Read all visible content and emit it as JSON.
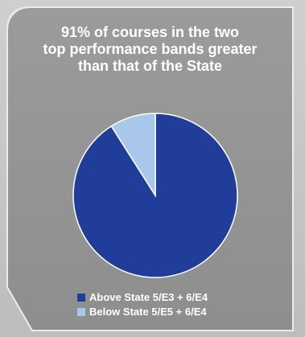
{
  "chart_data": {
    "type": "pie",
    "title_lines": [
      "91% of courses in the two",
      "top performance bands greater",
      "than that of the State"
    ],
    "slices": [
      {
        "name": "Above State 5/E3 + 6/E4",
        "value": 91,
        "color": "#1f3d99"
      },
      {
        "name": "Below State 5/E5 + 6/E4",
        "value": 9,
        "color": "#a9c6eb"
      }
    ],
    "legend_position": "bottom"
  }
}
